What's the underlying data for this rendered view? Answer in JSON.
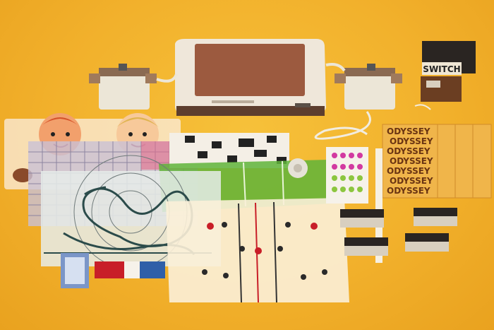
{
  "scene": {
    "background_color": "#f2b12c",
    "description_items": [
      "console",
      "left-controller",
      "right-controller",
      "switch-box",
      "tv-overlays",
      "game-cards",
      "playing-cards",
      "poker-chips",
      "score-sheet",
      "tape-roll"
    ]
  },
  "switch_box": {
    "label": "SWITCH"
  },
  "score_sheet": {
    "repeated_text": "ODYSSEY",
    "rows": [
      "ODYSSEY",
      "ODYSSEY",
      "ODYSSEY",
      "ODYSSEY",
      "ODYSSEY",
      "ODYSSEY",
      "ODYSSEY"
    ]
  },
  "colors": {
    "console_body": "#efe7da",
    "console_top": "#9c5a3f",
    "controller_body": "#ece6d7",
    "overlay_green": "#5fb43a",
    "score_sheet": "#f0b54a",
    "chip_red": "#c81e28",
    "chip_blue": "#2f5fa8"
  }
}
